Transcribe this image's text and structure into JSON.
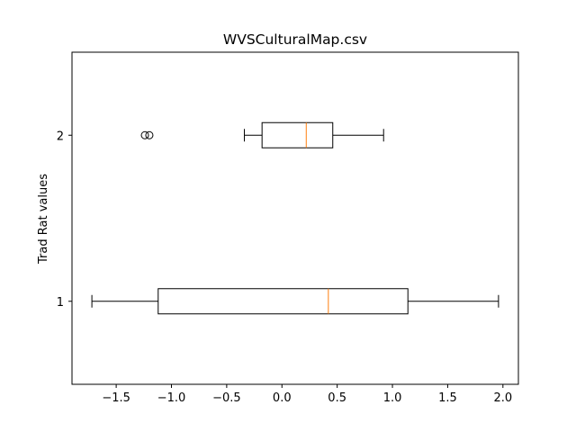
{
  "chart_data": {
    "type": "boxplot",
    "orientation": "horizontal",
    "title": "WVSCulturalMap.csv",
    "xlabel": "",
    "ylabel": "Trad Rat values",
    "xlim": [
      -1.9,
      2.14
    ],
    "ylim": [
      0.5,
      2.5
    ],
    "x_ticks": [
      -1.5,
      -1.0,
      -0.5,
      0.0,
      0.5,
      1.0,
      1.5,
      2.0
    ],
    "x_tick_labels": [
      "−1.5",
      "−1.0",
      "−0.5",
      "0.0",
      "0.5",
      "1.0",
      "1.5",
      "2.0"
    ],
    "y_ticks": [
      1,
      2
    ],
    "y_tick_labels": [
      "1",
      "2"
    ],
    "grid": false,
    "series": [
      {
        "position": 1,
        "whisker_low": -1.72,
        "q1": -1.12,
        "median": 0.42,
        "q3": 1.14,
        "whisker_high": 1.96,
        "outliers": []
      },
      {
        "position": 2,
        "whisker_low": -0.34,
        "q1": -0.18,
        "median": 0.22,
        "q3": 0.46,
        "whisker_high": 0.92,
        "outliers": [
          -1.24,
          -1.2
        ]
      }
    ],
    "colors": {
      "box": "#000000",
      "median": "#ff7f0e",
      "flier": "#000000"
    }
  }
}
